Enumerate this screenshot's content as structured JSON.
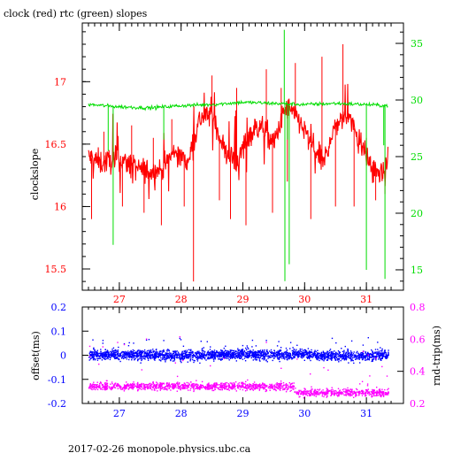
{
  "title": "clock (red) rtc (green) slopes",
  "footer": "2017-02-26 monopole.physics.ubc.ca",
  "colors": {
    "red": "#ff0000",
    "green": "#00dd00",
    "blue": "#0000ff",
    "magenta": "#ff00ff",
    "black": "#000000"
  },
  "top": {
    "ylabel_left": "clockslope",
    "xlim": [
      26.4,
      31.6
    ],
    "ylim_left": [
      15.33,
      17.47
    ],
    "ylim_right": [
      13.2,
      36.8
    ],
    "xticks": [
      "27",
      "28",
      "29",
      "30",
      "31"
    ],
    "yticks_left": [
      "15.5",
      "16",
      "16.5",
      "17"
    ],
    "yticks_right": [
      "15",
      "20",
      "25",
      "30",
      "35"
    ]
  },
  "bottom": {
    "ylabel_left": "offset(ms)",
    "ylabel_right": "rnd-trip(ms)",
    "xlim": [
      26.4,
      31.6
    ],
    "ylim_left": [
      -0.2,
      0.2
    ],
    "ylim_right": [
      0.2,
      0.8
    ],
    "xticks": [
      "27",
      "28",
      "29",
      "30",
      "31"
    ],
    "yticks_left": [
      "-0.2",
      "-0.1",
      "0",
      "0.1",
      "0.2"
    ],
    "yticks_right": [
      "0.2",
      "0.4",
      "0.6",
      "0.8"
    ]
  },
  "chart_data": [
    {
      "type": "line",
      "title": "clock (red) rtc (green) slopes",
      "ylabel": "clockslope",
      "series": [
        {
          "name": "clock",
          "color": "#ff0000",
          "axis": "left",
          "x": [
            26.5,
            26.7,
            27.0,
            27.3,
            27.5,
            27.7,
            27.9,
            28.1,
            28.3,
            28.5,
            28.7,
            28.9,
            29.1,
            29.3,
            29.5,
            29.7,
            29.9,
            30.1,
            30.3,
            30.5,
            30.7,
            30.9,
            31.1,
            31.3,
            31.35
          ],
          "y": [
            16.4,
            16.35,
            16.38,
            16.3,
            16.28,
            16.3,
            16.45,
            16.35,
            16.7,
            16.75,
            16.45,
            16.35,
            16.58,
            16.65,
            16.5,
            16.8,
            16.7,
            16.5,
            16.35,
            16.65,
            16.75,
            16.5,
            16.3,
            16.25,
            16.4
          ]
        },
        {
          "name": "rtc",
          "color": "#00dd00",
          "axis": "right",
          "x": [
            26.5,
            27.0,
            27.5,
            28.0,
            28.5,
            29.0,
            29.5,
            30.0,
            30.5,
            31.0,
            31.35
          ],
          "y": [
            29.6,
            29.4,
            29.3,
            29.5,
            29.6,
            29.8,
            29.7,
            29.6,
            29.7,
            29.6,
            29.5
          ]
        }
      ]
    },
    {
      "type": "scatter",
      "ylabel": "offset(ms)",
      "series": [
        {
          "name": "offset",
          "color": "#0000ff",
          "axis": "left",
          "x": [
            26.5,
            27.0,
            27.5,
            28.0,
            28.5,
            29.0,
            29.5,
            30.0,
            30.5,
            31.0,
            31.35
          ],
          "y": [
            0.005,
            0.005,
            0.005,
            0.0,
            0.005,
            0.005,
            0.005,
            0.005,
            0.0,
            0.0,
            0.005
          ]
        },
        {
          "name": "rnd-trip",
          "color": "#ff00ff",
          "axis": "right",
          "x": [
            26.5,
            27.0,
            27.5,
            28.0,
            28.5,
            29.0,
            29.5,
            29.8,
            29.85,
            30.2,
            30.6,
            31.0,
            31.35
          ],
          "y": [
            0.31,
            0.31,
            0.31,
            0.31,
            0.31,
            0.31,
            0.31,
            0.31,
            0.27,
            0.27,
            0.27,
            0.27,
            0.27
          ]
        }
      ]
    }
  ]
}
